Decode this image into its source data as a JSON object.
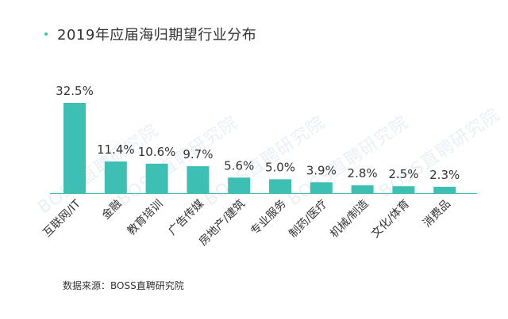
{
  "title": "2019年应届海归期望行业分布",
  "source": "数据来源：BOSS直聘研究院",
  "watermark": "BOSS直聘研究院",
  "colors": {
    "bar": "#3dbfb3",
    "axis": "#3dbfb3",
    "text": "#333333"
  },
  "chart_data": {
    "type": "bar",
    "title": "2019年应届海归期望行业分布",
    "categories": [
      "互联网/IT",
      "金融",
      "教育培训",
      "广告传媒",
      "房地产/建筑",
      "专业服务",
      "制药/医疗",
      "机械/制造",
      "文化/体育",
      "消费品"
    ],
    "values": [
      32.5,
      11.4,
      10.6,
      9.7,
      5.6,
      5.0,
      3.9,
      2.8,
      2.5,
      2.3
    ],
    "value_labels": [
      "32.5%",
      "11.4%",
      "10.6%",
      "9.7%",
      "5.6%",
      "5.0%",
      "3.9%",
      "2.8%",
      "2.5%",
      "2.3%"
    ],
    "ylim": [
      0,
      32.5
    ],
    "grid": false
  }
}
